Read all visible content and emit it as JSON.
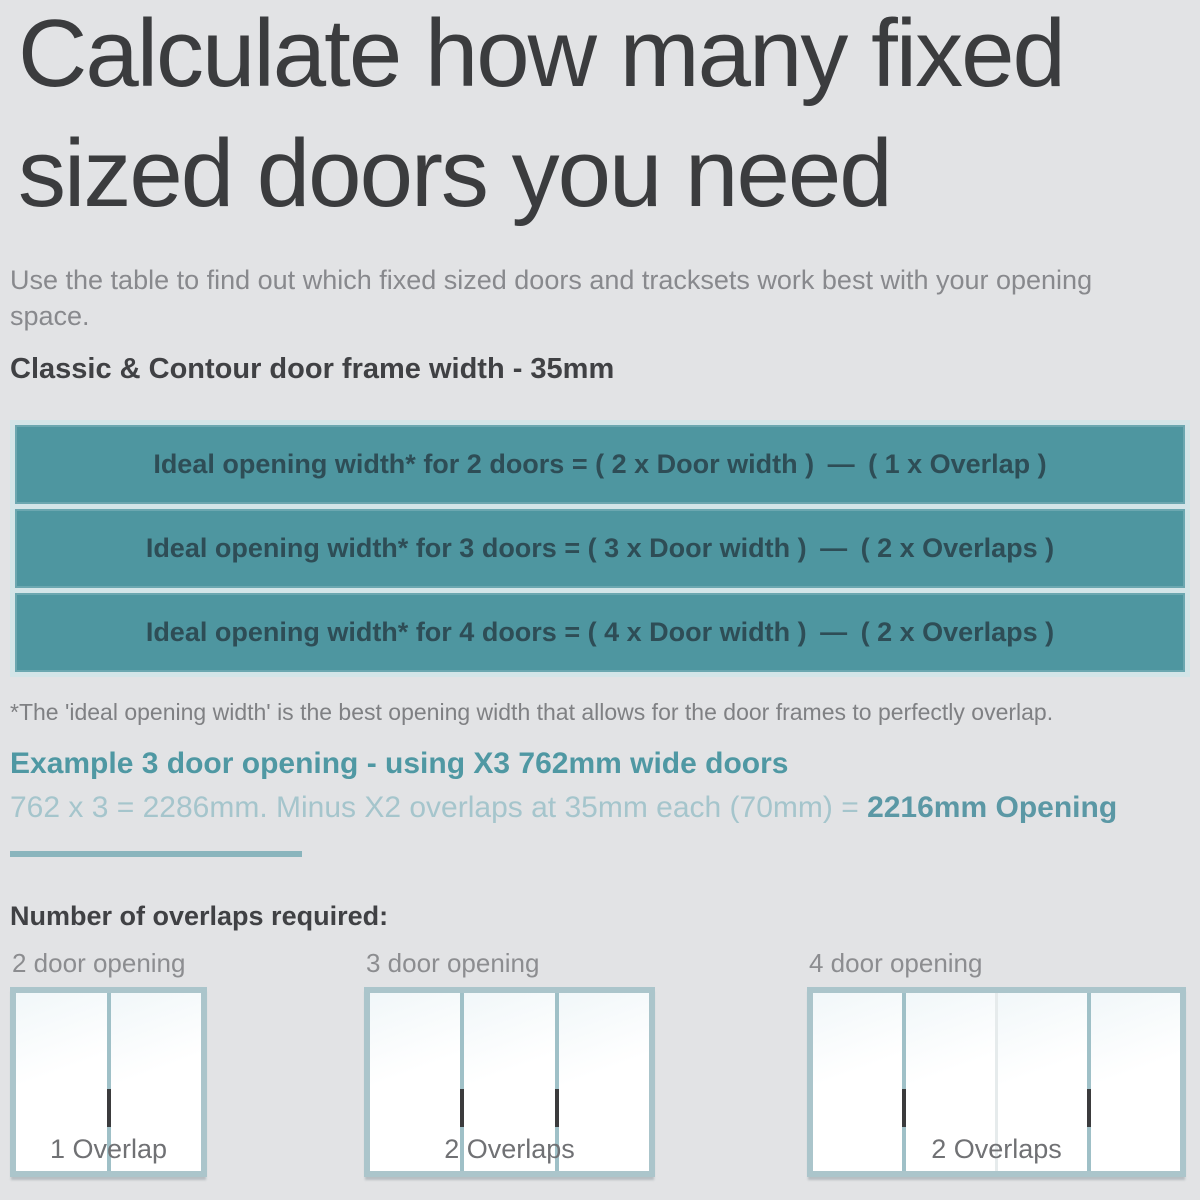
{
  "title": "Calculate how many fixed sized doors you need",
  "intro": "Use the table to find out which fixed sized doors and tracksets work best with your opening space.",
  "frame_width_heading": "Classic & Contour door frame width - 35mm",
  "formulas": {
    "rows": [
      {
        "label": "Ideal opening width* for 2 doors = ( 2 x Door width ) — ( 1 x Overlap )"
      },
      {
        "label": "Ideal opening width* for 3 doors = ( 3 x Door width ) — ( 2 x Overlaps )"
      },
      {
        "label": "Ideal opening width* for 4 doors = ( 4 x Door width ) — ( 2 x Overlaps )"
      }
    ]
  },
  "footnote": "*The 'ideal opening width' is the best opening width that allows for the door frames to perfectly overlap.",
  "example": {
    "heading": "Example 3 door opening - using X3 762mm wide doors",
    "calc_prefix": "762 x 3 = 2286mm. Minus X2 overlaps at 35mm each (70mm) = ",
    "calc_result": "2216mm Opening"
  },
  "overlaps_heading": "Number of overlaps required:",
  "diagrams": [
    {
      "label": "2 door opening",
      "doors": 2,
      "overlap_label": "1 Overlap"
    },
    {
      "label": "3 door opening",
      "doors": 3,
      "overlap_label": "2 Overlaps"
    },
    {
      "label": "4 door opening",
      "doors": 4,
      "overlap_label": "2 Overlaps"
    }
  ],
  "colors": {
    "page_background": "#e2e3e5",
    "heading_text": "#3b3c3e",
    "body_text": "#88898d",
    "table_fill": "#4e96a0",
    "table_frame": "#d3e5e8",
    "table_text": "#2e4d56",
    "example_teal": "#4f98a3",
    "example_teal_light": "#a5c5cc",
    "door_box_border": "#abc5cb",
    "overlap_seam": "#9fc0c7",
    "overlap_mark": "#3b3b3d"
  }
}
